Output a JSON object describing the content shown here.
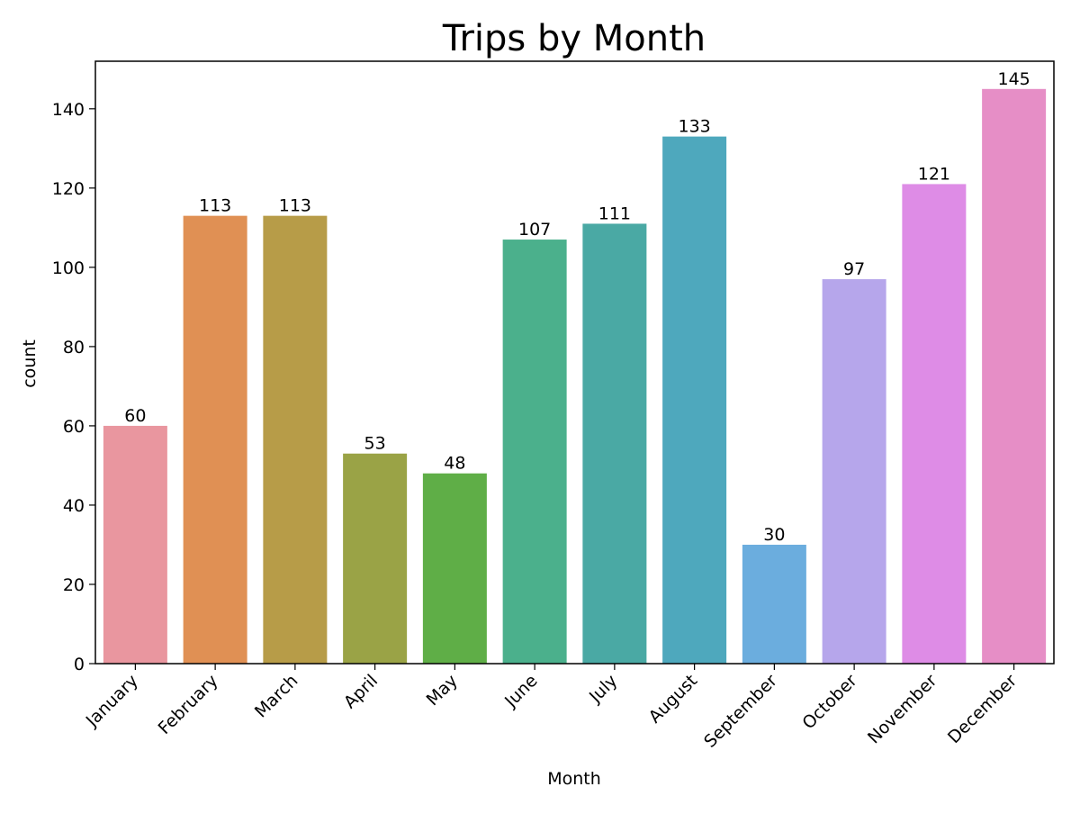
{
  "chart_data": {
    "type": "bar",
    "title": "Trips by Month",
    "xlabel": "Month",
    "ylabel": "count",
    "ylim": [
      0,
      152
    ],
    "yticks": [
      0,
      20,
      40,
      60,
      80,
      100,
      120,
      140
    ],
    "categories": [
      "January",
      "February",
      "March",
      "April",
      "May",
      "June",
      "July",
      "August",
      "September",
      "October",
      "November",
      "December"
    ],
    "values": [
      60,
      113,
      113,
      53,
      48,
      107,
      111,
      133,
      30,
      97,
      121,
      145
    ],
    "colors": [
      "#e9969f",
      "#e09054",
      "#b79c48",
      "#9aa346",
      "#5fae47",
      "#4bb08c",
      "#4aa9a4",
      "#4ea8bd",
      "#6badde",
      "#b6a6eb",
      "#de8ce6",
      "#e68ec6"
    ],
    "grid": false,
    "legend": false
  }
}
